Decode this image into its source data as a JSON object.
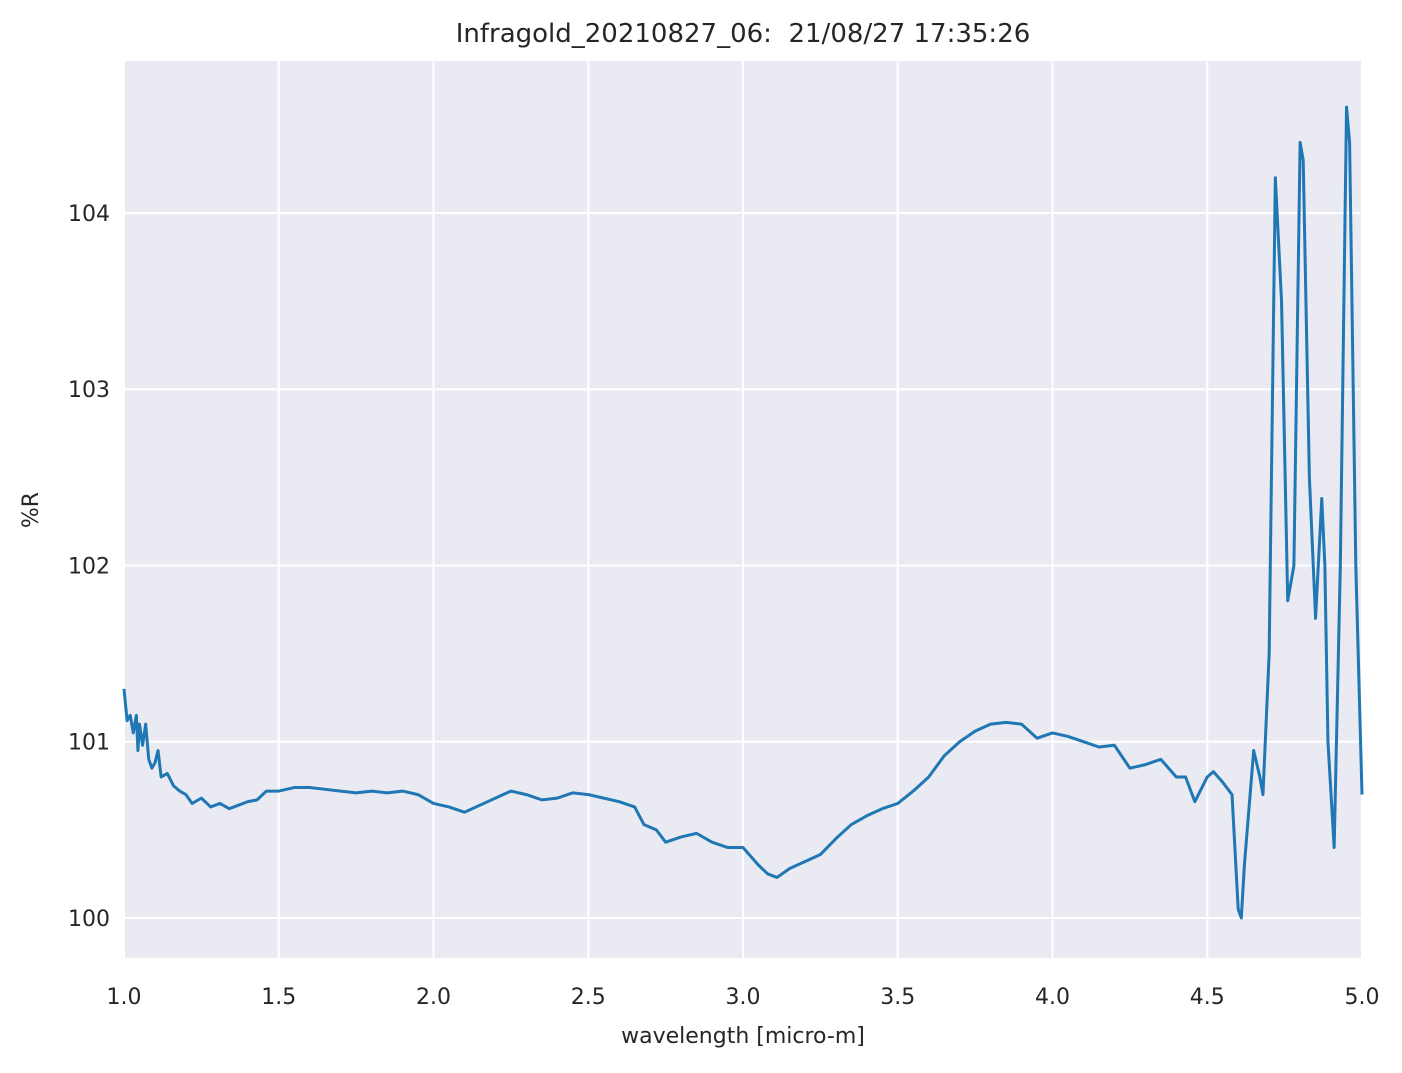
{
  "chart_data": {
    "type": "line",
    "title": "Infragold_20210827_06:  21/08/27 17:35:26",
    "x_label": "wavelength [micro-m]",
    "y_label": "%R",
    "xlim": [
      1.0,
      5.0
    ],
    "ylim": [
      99.773,
      104.862
    ],
    "xticks": [
      {
        "value": 1.0,
        "label": "1.0"
      },
      1.5,
      {
        "value": 2.0,
        "label": "2.0"
      },
      2.5,
      {
        "value": 3.0,
        "label": "3.0"
      },
      3.5,
      {
        "value": 4.0,
        "label": "4.0"
      },
      4.5,
      {
        "value": 5.0,
        "label": "5.0"
      }
    ],
    "yticks": [
      100,
      101,
      102,
      103,
      104
    ],
    "grid": true,
    "x": [
      1.0,
      1.01,
      1.02,
      1.03,
      1.04,
      1.045,
      1.05,
      1.06,
      1.07,
      1.08,
      1.09,
      1.1,
      1.11,
      1.12,
      1.14,
      1.16,
      1.18,
      1.2,
      1.22,
      1.25,
      1.28,
      1.31,
      1.34,
      1.37,
      1.4,
      1.43,
      1.46,
      1.5,
      1.55,
      1.6,
      1.65,
      1.7,
      1.75,
      1.8,
      1.85,
      1.9,
      1.95,
      2.0,
      2.05,
      2.1,
      2.15,
      2.2,
      2.25,
      2.3,
      2.35,
      2.4,
      2.45,
      2.5,
      2.55,
      2.6,
      2.65,
      2.68,
      2.72,
      2.75,
      2.8,
      2.85,
      2.9,
      2.95,
      3.0,
      3.05,
      3.08,
      3.11,
      3.15,
      3.2,
      3.25,
      3.3,
      3.35,
      3.4,
      3.45,
      3.5,
      3.55,
      3.6,
      3.65,
      3.7,
      3.75,
      3.8,
      3.85,
      3.9,
      3.95,
      4.0,
      4.05,
      4.1,
      4.15,
      4.2,
      4.25,
      4.3,
      4.35,
      4.4,
      4.43,
      4.46,
      4.5,
      4.52,
      4.55,
      4.58,
      4.6,
      4.61,
      4.62,
      4.65,
      4.67,
      4.68,
      4.7,
      4.72,
      4.74,
      4.76,
      4.78,
      4.8,
      4.81,
      4.83,
      4.85,
      4.87,
      4.88,
      4.89,
      4.91,
      4.93,
      4.95,
      4.96,
      4.98,
      5.0
    ],
    "series": [
      {
        "name": "%R",
        "color": "#1f77b4",
        "values": [
          101.3,
          101.12,
          101.15,
          101.05,
          101.15,
          100.95,
          101.1,
          100.98,
          101.1,
          100.9,
          100.85,
          100.88,
          100.95,
          100.8,
          100.82,
          100.75,
          100.72,
          100.7,
          100.65,
          100.68,
          100.63,
          100.65,
          100.62,
          100.64,
          100.66,
          100.67,
          100.72,
          100.72,
          100.74,
          100.74,
          100.73,
          100.72,
          100.71,
          100.72,
          100.71,
          100.72,
          100.7,
          100.65,
          100.63,
          100.6,
          100.64,
          100.68,
          100.72,
          100.7,
          100.67,
          100.68,
          100.71,
          100.7,
          100.68,
          100.66,
          100.63,
          100.53,
          100.5,
          100.43,
          100.46,
          100.48,
          100.43,
          100.4,
          100.4,
          100.3,
          100.25,
          100.23,
          100.28,
          100.32,
          100.36,
          100.45,
          100.53,
          100.58,
          100.62,
          100.65,
          100.72,
          100.8,
          100.92,
          101.0,
          101.06,
          101.1,
          101.11,
          101.1,
          101.02,
          101.05,
          101.03,
          101.0,
          100.97,
          100.98,
          100.85,
          100.87,
          100.9,
          100.8,
          100.8,
          100.66,
          100.8,
          100.83,
          100.77,
          100.7,
          100.05,
          100.0,
          100.3,
          100.95,
          100.8,
          100.7,
          101.5,
          104.2,
          103.5,
          101.8,
          102.0,
          104.4,
          104.3,
          102.5,
          101.7,
          102.38,
          102.0,
          101.0,
          100.4,
          102.0,
          104.6,
          104.4,
          102.0,
          100.7
        ]
      }
    ]
  }
}
